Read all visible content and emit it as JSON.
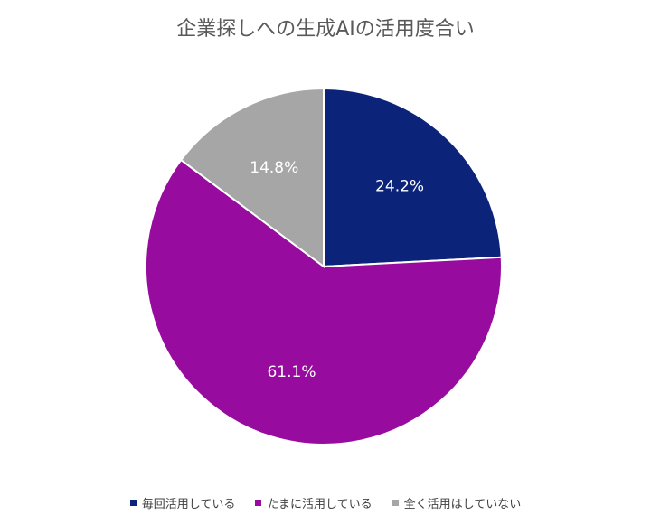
{
  "chart_data": {
    "type": "pie",
    "title": "企業探しへの生成AIの活用度合い",
    "categories": [
      "毎回活用している",
      "たまに活用している",
      "全く活用はしていない"
    ],
    "values": [
      24.2,
      61.1,
      14.8
    ],
    "data_labels": [
      "24.2%",
      "61.1%",
      "14.8%"
    ],
    "colors": [
      "#0b2379",
      "#970c9e",
      "#a6a6a6"
    ],
    "start_angle": "12 o'clock",
    "direction": "clockwise",
    "legend_position": "bottom"
  }
}
